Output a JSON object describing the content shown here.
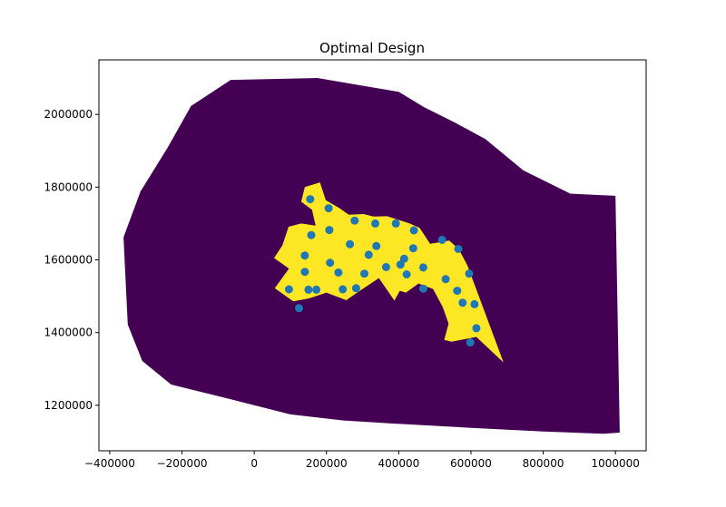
{
  "chart_data": {
    "type": "scatter",
    "title": "Optimal Design",
    "xlabel": "",
    "ylabel": "",
    "xlim": [
      -430000,
      1085000
    ],
    "ylim": [
      1075000,
      2150000
    ],
    "x_ticks": [
      -400000,
      -200000,
      0,
      200000,
      400000,
      600000,
      800000,
      1000000
    ],
    "x_tick_labels": [
      "−400000",
      "−200000",
      "0",
      "200000",
      "400000",
      "600000",
      "800000",
      "1000000"
    ],
    "y_ticks": [
      1200000,
      1400000,
      1600000,
      1800000,
      2000000
    ],
    "y_tick_labels": [
      "1200000",
      "1400000",
      "1600000",
      "1800000",
      "2000000"
    ],
    "grid": false,
    "colors": {
      "outer_region": "#440154",
      "inner_region": "#fde725",
      "points": "#1f77b4"
    },
    "outer_region": [
      [
        -65000,
        2095000
      ],
      [
        175000,
        2100000
      ],
      [
        400000,
        2062000
      ],
      [
        470000,
        2020000
      ],
      [
        555000,
        1978000
      ],
      [
        640000,
        1932000
      ],
      [
        745000,
        1846000
      ],
      [
        875000,
        1782000
      ],
      [
        1000000,
        1776000
      ],
      [
        1012000,
        1125000
      ],
      [
        965000,
        1122000
      ],
      [
        800000,
        1128000
      ],
      [
        600000,
        1138000
      ],
      [
        380000,
        1150000
      ],
      [
        250000,
        1158000
      ],
      [
        100000,
        1175000
      ],
      [
        -50000,
        1213000
      ],
      [
        -230000,
        1257000
      ],
      [
        -310000,
        1322000
      ],
      [
        -350000,
        1422000
      ],
      [
        -362000,
        1662000
      ],
      [
        -315000,
        1788000
      ],
      [
        -240000,
        1908000
      ],
      [
        -175000,
        2023000
      ]
    ],
    "inner_region": [
      [
        140000,
        1800000
      ],
      [
        182000,
        1813000
      ],
      [
        198000,
        1764000
      ],
      [
        235000,
        1743000
      ],
      [
        262000,
        1724000
      ],
      [
        303000,
        1726000
      ],
      [
        330000,
        1719000
      ],
      [
        368000,
        1720000
      ],
      [
        430000,
        1700000
      ],
      [
        458000,
        1688000
      ],
      [
        487000,
        1644000
      ],
      [
        540000,
        1653000
      ],
      [
        566000,
        1630000
      ],
      [
        590000,
        1585000
      ],
      [
        690000,
        1318000
      ],
      [
        615000,
        1388000
      ],
      [
        546000,
        1375000
      ],
      [
        526000,
        1380000
      ],
      [
        538000,
        1425000
      ],
      [
        522000,
        1470000
      ],
      [
        495000,
        1520000
      ],
      [
        455000,
        1535000
      ],
      [
        420000,
        1510000
      ],
      [
        403000,
        1515000
      ],
      [
        388000,
        1488000
      ],
      [
        345000,
        1550000
      ],
      [
        285000,
        1510000
      ],
      [
        255000,
        1489000
      ],
      [
        200000,
        1510000
      ],
      [
        152000,
        1494000
      ],
      [
        108000,
        1486000
      ],
      [
        57000,
        1522000
      ],
      [
        96000,
        1576000
      ],
      [
        55000,
        1605000
      ],
      [
        78000,
        1640000
      ],
      [
        95000,
        1691000
      ],
      [
        130000,
        1700000
      ],
      [
        170000,
        1694000
      ],
      [
        160000,
        1738000
      ],
      [
        130000,
        1760000
      ]
    ],
    "points": {
      "x": [
        155000,
        206000,
        158000,
        208000,
        278000,
        335000,
        392000,
        442000,
        265000,
        338000,
        317000,
        140000,
        210000,
        415000,
        440000,
        520000,
        565000,
        405000,
        365000,
        468000,
        233000,
        305000,
        140000,
        150000,
        422000,
        530000,
        595000,
        96000,
        172000,
        245000,
        282000,
        468000,
        562000,
        577000,
        610000,
        124000,
        615000,
        598000
      ],
      "y": [
        1767000,
        1742000,
        1668000,
        1682000,
        1708000,
        1700000,
        1700000,
        1681000,
        1643000,
        1638000,
        1614000,
        1612000,
        1592000,
        1603000,
        1632000,
        1655000,
        1630000,
        1587000,
        1580000,
        1579000,
        1565000,
        1562000,
        1567000,
        1518000,
        1560000,
        1547000,
        1562000,
        1519000,
        1518000,
        1519000,
        1522000,
        1521000,
        1515000,
        1482000,
        1478000,
        1467000,
        1412000,
        1373000
      ]
    }
  }
}
